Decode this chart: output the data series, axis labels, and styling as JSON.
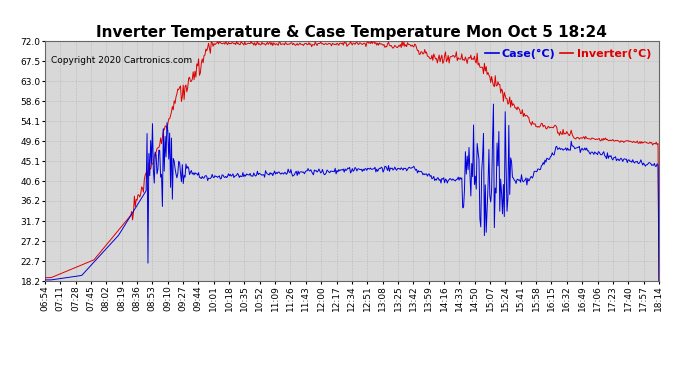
{
  "title": "Inverter Temperature & Case Temperature Mon Oct 5 18:24",
  "copyright": "Copyright 2020 Cartronics.com",
  "legend_case": "Case(°C)",
  "legend_inverter": "Inverter(°C)",
  "case_color": "#0000dd",
  "inverter_color": "#dd0000",
  "background_color": "#ffffff",
  "plot_bg_color": "#d8d8d8",
  "grid_color": "#bbbbbb",
  "ylim": [
    18.2,
    72.0
  ],
  "yticks": [
    18.2,
    22.7,
    27.2,
    31.7,
    36.2,
    40.6,
    45.1,
    49.6,
    54.1,
    58.6,
    63.0,
    67.5,
    72.0
  ],
  "xtick_labels": [
    "06:54",
    "07:11",
    "07:28",
    "07:45",
    "08:02",
    "08:19",
    "08:36",
    "08:53",
    "09:10",
    "09:27",
    "09:44",
    "10:01",
    "10:18",
    "10:35",
    "10:52",
    "11:09",
    "11:26",
    "11:43",
    "12:00",
    "12:17",
    "12:34",
    "12:51",
    "13:08",
    "13:25",
    "13:42",
    "13:59",
    "14:16",
    "14:33",
    "14:50",
    "15:07",
    "15:24",
    "15:41",
    "15:58",
    "16:15",
    "16:32",
    "16:49",
    "17:06",
    "17:23",
    "17:40",
    "17:57",
    "18:14"
  ],
  "n_xticks": 41,
  "title_fontsize": 11,
  "tick_fontsize": 6.5,
  "legend_fontsize": 8,
  "copyright_fontsize": 6.5
}
